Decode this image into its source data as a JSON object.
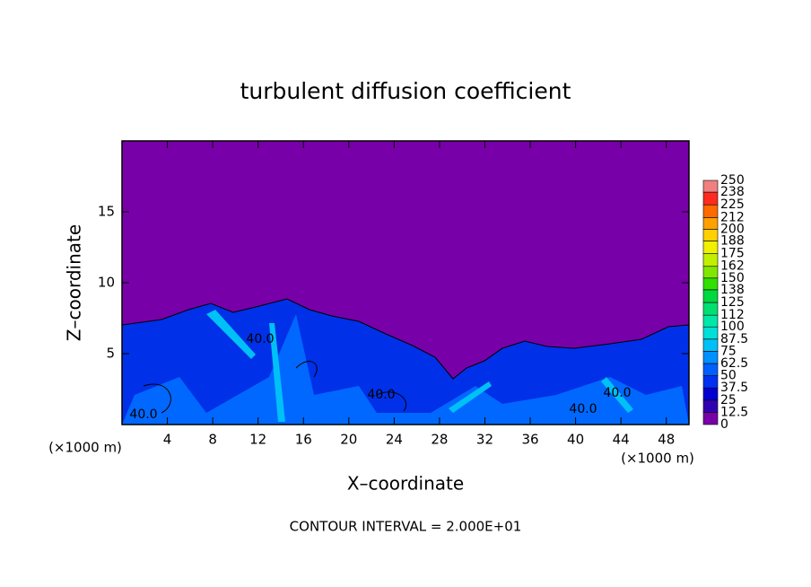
{
  "chart_data": {
    "type": "contour",
    "title": "turbulent diffusion coefficient",
    "xlabel": "X–coordinate",
    "ylabel": "Z–coordinate",
    "x_unit": "(×1000 m)",
    "y_unit": "(×1000 m)",
    "footer": "CONTOUR INTERVAL = 2.000E+01",
    "xlim": [
      0,
      50
    ],
    "ylim": [
      0,
      20
    ],
    "xticks": [
      4,
      8,
      12,
      16,
      20,
      24,
      28,
      32,
      36,
      40,
      44,
      48
    ],
    "yticks": [
      5,
      10,
      15
    ],
    "contour_labels": [
      "40.0",
      "40.0",
      "40.0",
      "40.0",
      "40.0"
    ],
    "colorbar": {
      "ticks": [
        0,
        12.5,
        25,
        37.5,
        50,
        62.5,
        75,
        87.5,
        100,
        112,
        125,
        138,
        150,
        162,
        175,
        188,
        200,
        212,
        225,
        238,
        250
      ],
      "colors": [
        "#7800a8",
        "#3000b0",
        "#0000d0",
        "#0030f0",
        "#0060ff",
        "#0090ff",
        "#00c0f8",
        "#00e0d8",
        "#00e8a8",
        "#00e070",
        "#00d840",
        "#30e000",
        "#80e800",
        "#c0f000",
        "#f0f000",
        "#ffd000",
        "#ffa000",
        "#ff6a00",
        "#ff2a20",
        "#f08080"
      ]
    }
  }
}
